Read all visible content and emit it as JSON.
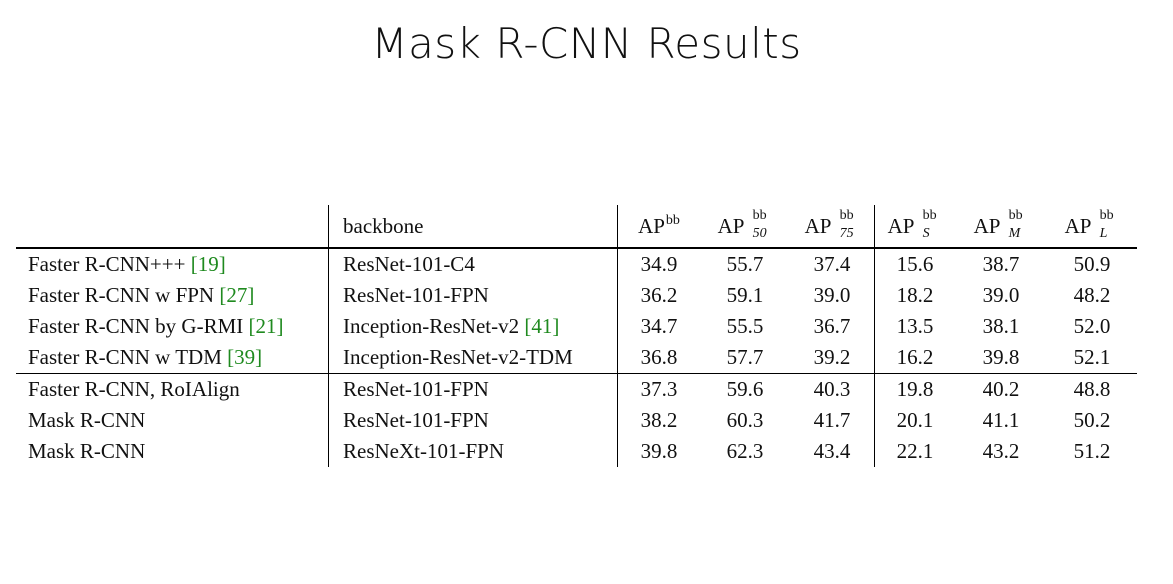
{
  "slide": {
    "title": "Mask R-CNN Results"
  },
  "table": {
    "header": {
      "backbone": "backbone",
      "ap_base": "AP",
      "ap_sup": "bb",
      "cols": [
        {
          "sub": ""
        },
        {
          "sub": "50"
        },
        {
          "sub": "75"
        },
        {
          "sub": "S"
        },
        {
          "sub": "M"
        },
        {
          "sub": "L"
        }
      ]
    },
    "rows": [
      {
        "method": "Faster R-CNN+++ ",
        "cite": "[19]",
        "backbone": "ResNet-101-C4",
        "backbone_cite": "",
        "values": [
          "34.9",
          "55.7",
          "37.4",
          "15.6",
          "38.7",
          "50.9"
        ],
        "bold_method": false,
        "bold_values": [
          false,
          false,
          false,
          false,
          false,
          false
        ]
      },
      {
        "method": "Faster R-CNN w FPN ",
        "cite": "[27]",
        "backbone": "ResNet-101-FPN",
        "backbone_cite": "",
        "values": [
          "36.2",
          "59.1",
          "39.0",
          "18.2",
          "39.0",
          "48.2"
        ],
        "bold_method": false,
        "bold_values": [
          false,
          false,
          false,
          false,
          false,
          false
        ]
      },
      {
        "method": "Faster R-CNN by G-RMI ",
        "cite": "[21]",
        "backbone": "Inception-ResNet-v2 ",
        "backbone_cite": "[41]",
        "values": [
          "34.7",
          "55.5",
          "36.7",
          "13.5",
          "38.1",
          "52.0"
        ],
        "bold_method": false,
        "bold_values": [
          false,
          false,
          false,
          false,
          false,
          false
        ]
      },
      {
        "method": "Faster R-CNN w TDM ",
        "cite": "[39]",
        "backbone": "Inception-ResNet-v2-TDM",
        "backbone_cite": "",
        "values": [
          "36.8",
          "57.7",
          "39.2",
          "16.2",
          "39.8",
          "52.1"
        ],
        "bold_method": false,
        "bold_values": [
          false,
          false,
          false,
          false,
          false,
          true
        ]
      },
      {
        "method": "Faster R-CNN, RoIAlign",
        "cite": "",
        "backbone": "ResNet-101-FPN",
        "backbone_cite": "",
        "values": [
          "37.3",
          "59.6",
          "40.3",
          "19.8",
          "40.2",
          "48.8"
        ],
        "bold_method": false,
        "bold_values": [
          false,
          false,
          false,
          false,
          false,
          false
        ]
      },
      {
        "method": "Mask R-CNN",
        "cite": "",
        "backbone": "ResNet-101-FPN",
        "backbone_cite": "",
        "values": [
          "38.2",
          "60.3",
          "41.7",
          "20.1",
          "41.1",
          "50.2"
        ],
        "bold_method": true,
        "bold_values": [
          false,
          false,
          false,
          false,
          false,
          false
        ]
      },
      {
        "method": "Mask R-CNN",
        "cite": "",
        "backbone": "ResNeXt-101-FPN",
        "backbone_cite": "",
        "values": [
          "39.8",
          "62.3",
          "43.4",
          "22.1",
          "43.2",
          "51.2"
        ],
        "bold_method": true,
        "bold_values": [
          true,
          true,
          true,
          true,
          true,
          false
        ]
      }
    ],
    "citation_color": "#1f8a1f"
  }
}
